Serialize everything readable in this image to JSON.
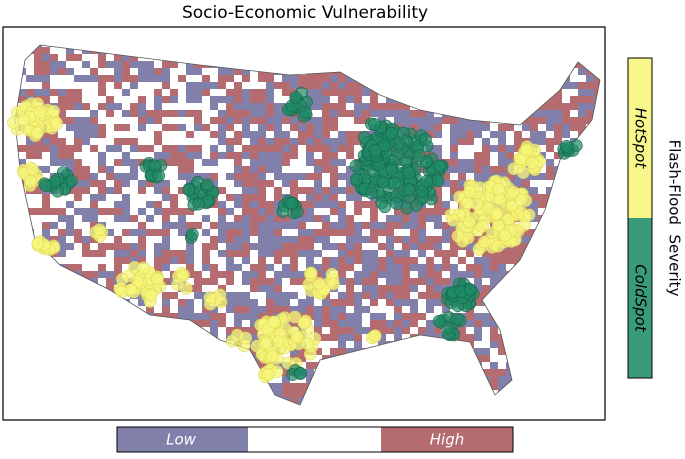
{
  "title": "Socio-Economic Vulnerability",
  "vulnerability_legend": {
    "low": "Low",
    "high": "High"
  },
  "flood_legend": {
    "title": "Flash-Flood  Severity",
    "hot": "HotSpot",
    "cold": "ColdSpot"
  }
}
